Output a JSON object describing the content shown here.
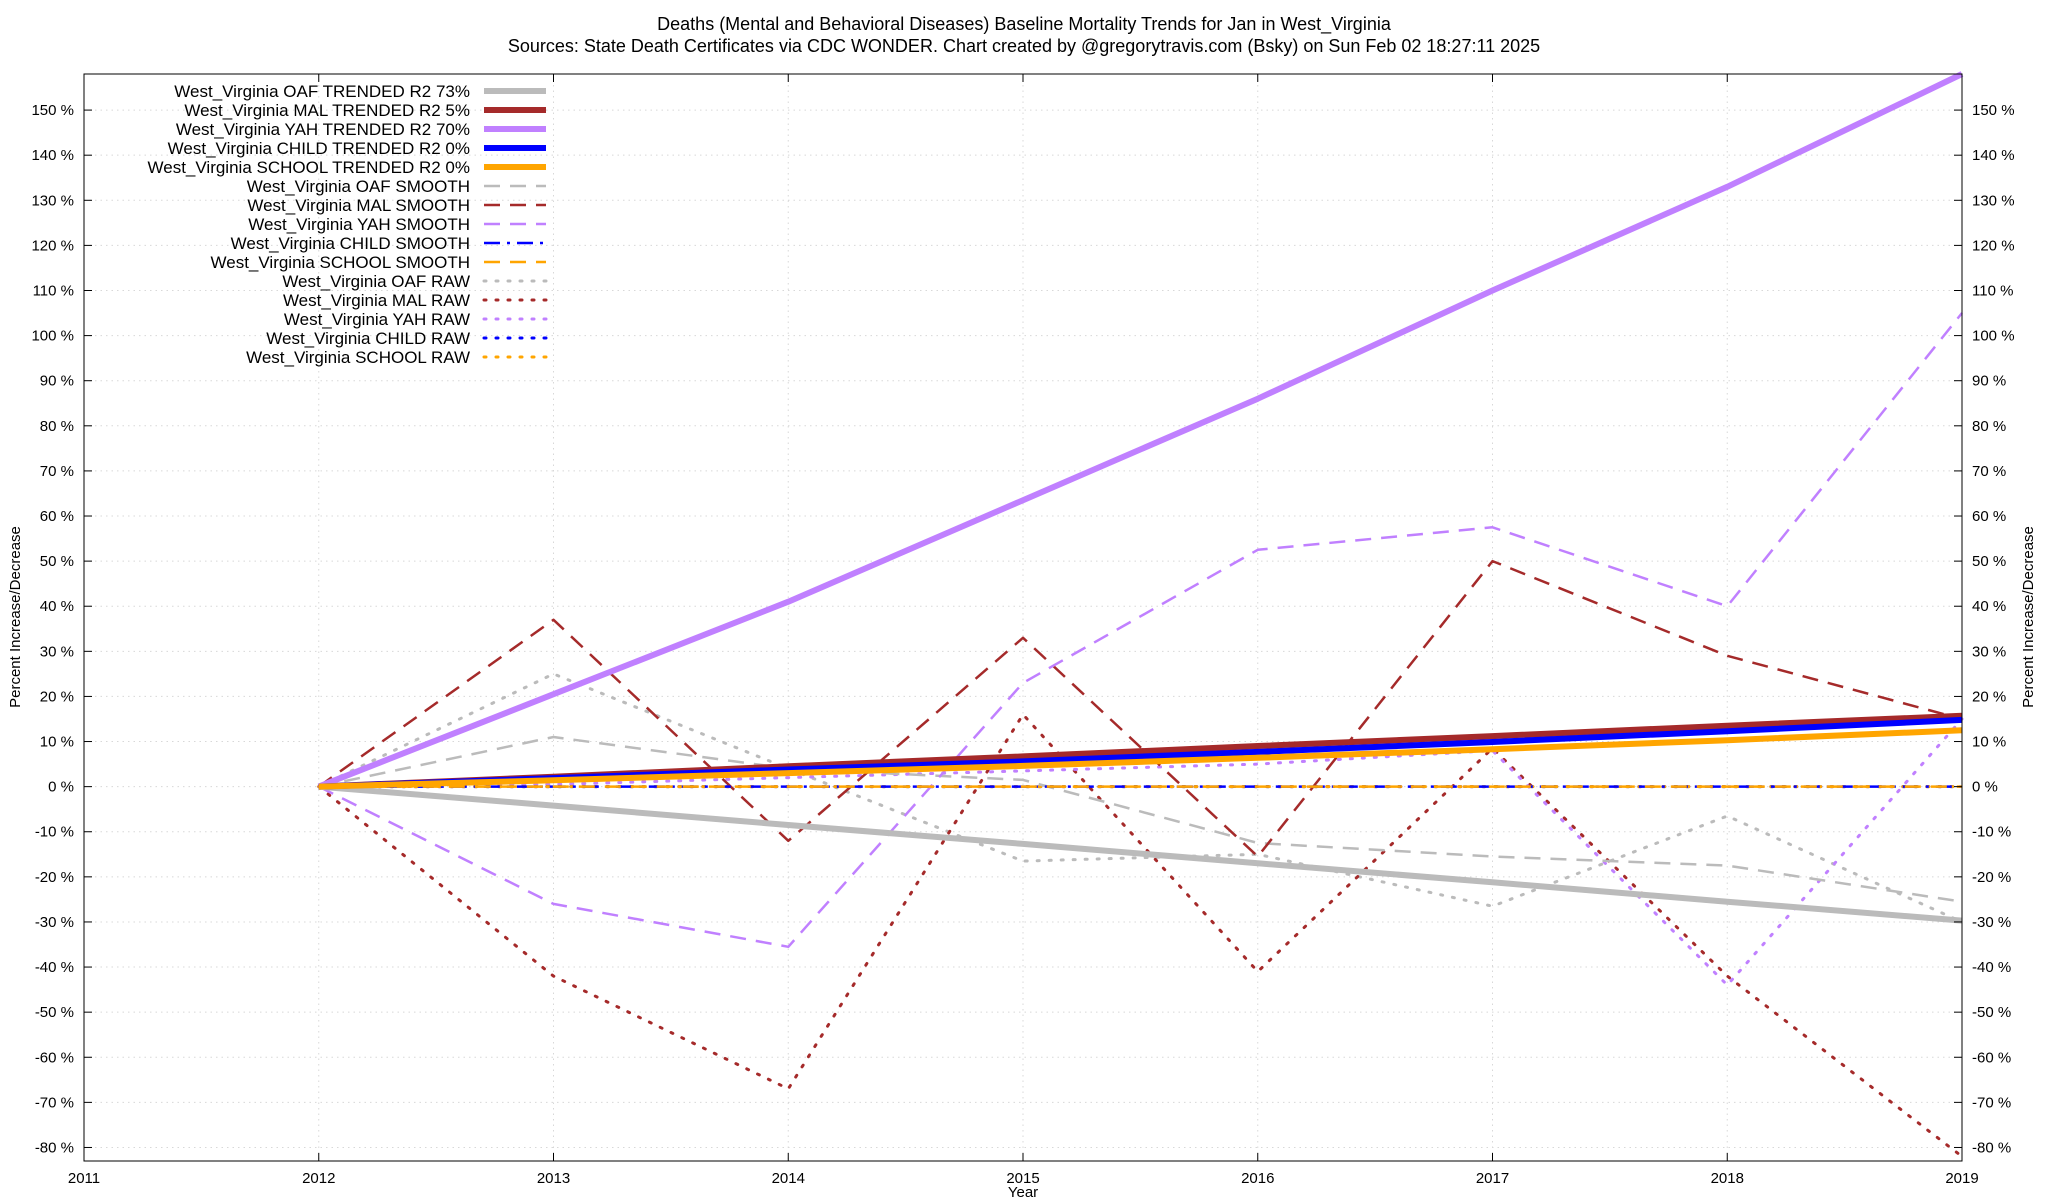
{
  "chart_data": {
    "type": "line",
    "title": "Deaths (Mental and Behavioral Diseases)  Baseline Mortality Trends for Jan in West_Virginia",
    "subtitle": "Sources: State Death Certificates via CDC WONDER.              Chart created by @gregorytravis.com (Bsky) on Sun Feb 02 18:27:11 2025",
    "xlabel": "Year",
    "ylabel": "Percent Increase/Decrease",
    "y2label": "Percent Increase/Decrease",
    "xlim": [
      2011,
      2019
    ],
    "ylim": [
      -83,
      158
    ],
    "x_ticks": [
      "2011",
      "2012",
      "2013",
      "2014",
      "2015",
      "2016",
      "2017",
      "2018",
      "2019"
    ],
    "y_tick_values": [
      -80,
      -70,
      -60,
      -50,
      -40,
      -30,
      -20,
      -10,
      0,
      10,
      20,
      30,
      40,
      50,
      60,
      70,
      80,
      90,
      100,
      110,
      120,
      130,
      140,
      150
    ],
    "y_ticks": [
      "-80 %",
      "-70 %",
      "-60 %",
      "-50 %",
      "-40 %",
      "-30 %",
      "-20 %",
      "-10 %",
      "0 %",
      "10 %",
      "20 %",
      "30 %",
      "40 %",
      "50 %",
      "60 %",
      "70 %",
      "80 %",
      "90 %",
      "100 %",
      "110 %",
      "120 %",
      "130 %",
      "140 %",
      "150 %"
    ],
    "grid": true,
    "legend_position": "top-left",
    "x": [
      2012,
      2013,
      2014,
      2015,
      2016,
      2017,
      2018,
      2019
    ],
    "series": [
      {
        "name": "West_Virginia OAF TRENDED R2  73%",
        "color": "#bbbbbb",
        "style": "solid-thick",
        "values": [
          0,
          -4.2,
          -8.5,
          -12.7,
          -17.0,
          -21.2,
          -25.5,
          -29.7
        ]
      },
      {
        "name": "West_Virginia MAL TRENDED R2   5%",
        "color": "#a52a2a",
        "style": "solid-thick",
        "values": [
          0,
          2.2,
          4.5,
          6.7,
          9.0,
          11.2,
          13.5,
          15.7
        ]
      },
      {
        "name": "West_Virginia YAH TRENDED R2  70%",
        "color": "#c080ff",
        "style": "solid-thick",
        "values": [
          0,
          20.5,
          41,
          63.5,
          86,
          110,
          133,
          158
        ]
      },
      {
        "name": "West_Virginia CHILD TRENDED R2   0%",
        "color": "#0000ff",
        "style": "solid-thick",
        "values": [
          0,
          1.9,
          3.8,
          5.6,
          7.7,
          9.9,
          12.3,
          14.8
        ]
      },
      {
        "name": "West_Virginia SCHOOL TRENDED R2   0%",
        "color": "#ffa500",
        "style": "solid-thick",
        "values": [
          0,
          1.4,
          3.0,
          4.6,
          6.4,
          8.3,
          10.3,
          12.5
        ]
      },
      {
        "name": "West_Virginia OAF SMOOTH",
        "color": "#bbbbbb",
        "style": "dashed",
        "values": [
          0,
          11,
          4,
          1.5,
          -12.5,
          -15.5,
          -17.5,
          -25.5
        ]
      },
      {
        "name": "West_Virginia MAL SMOOTH",
        "color": "#a52a2a",
        "style": "dashed",
        "values": [
          0,
          37,
          -12,
          33,
          -15.5,
          50,
          29,
          15
        ]
      },
      {
        "name": "West_Virginia YAH SMOOTH",
        "color": "#c080ff",
        "style": "dashed",
        "values": [
          0,
          -26,
          -35.5,
          23,
          52.5,
          57.5,
          40,
          105
        ]
      },
      {
        "name": "West_Virginia CHILD SMOOTH",
        "color": "#0000ff",
        "style": "dashed",
        "values": [
          0,
          0,
          0,
          0,
          0,
          0,
          0,
          0
        ]
      },
      {
        "name": "West_Virginia SCHOOL SMOOTH",
        "color": "#ffa500",
        "style": "dashed",
        "values": [
          0,
          0,
          0,
          0,
          0,
          0,
          0,
          0
        ]
      },
      {
        "name": "West_Virginia OAF RAW",
        "color": "#bbbbbb",
        "style": "dotted",
        "values": [
          0,
          25,
          4,
          -16.5,
          -15,
          -26.5,
          -6.5,
          -30
        ]
      },
      {
        "name": "West_Virginia MAL RAW",
        "color": "#a52a2a",
        "style": "dotted",
        "values": [
          0,
          -42,
          -67,
          16,
          -41,
          8.5,
          -42,
          -82
        ]
      },
      {
        "name": "West_Virginia YAH RAW",
        "color": "#c080ff",
        "style": "dotted",
        "values": [
          0,
          0.5,
          2,
          3.5,
          5,
          8,
          -44,
          15
        ]
      },
      {
        "name": "West_Virginia CHILD RAW",
        "color": "#0000ff",
        "style": "dotted",
        "values": [
          0,
          0,
          0,
          0,
          0,
          0,
          0,
          0
        ]
      },
      {
        "name": "West_Virginia SCHOOL RAW",
        "color": "#ffa500",
        "style": "dotted",
        "values": [
          0,
          0,
          0,
          0,
          0,
          0,
          0,
          0
        ]
      }
    ]
  }
}
